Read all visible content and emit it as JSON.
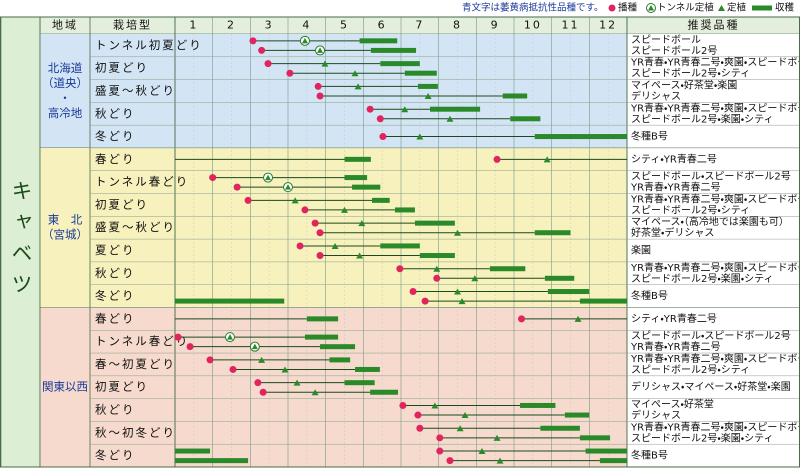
{
  "note": "青文字は萎黄病抵抗性品種です。",
  "legend": {
    "sow": "播種",
    "tunnel": "トンネル定植",
    "plant": "定植",
    "harvest": "収穫"
  },
  "header": {
    "region": "地域",
    "type": "栽培型",
    "months": [
      1,
      2,
      3,
      4,
      5,
      6,
      7,
      8,
      9,
      10,
      11,
      12
    ],
    "varieties": "推奨品種"
  },
  "crop": "キャベツ",
  "regions": [
    {
      "label": [
        "北海道",
        "（道央）",
        "・",
        "高冷地"
      ],
      "color": "#d3e5f4",
      "rows": [
        {
          "type": "トンネル初夏どり",
          "schedules": [
            {
              "sow": 2.07,
              "tunnel": 3.45,
              "harvest": [
                4.9,
                5.9
              ]
            },
            {
              "sow": 2.3,
              "tunnel": 3.85,
              "harvest": [
                5.2,
                6.4
              ]
            }
          ],
          "varieties": [
            {
              "text": "スピードボール",
              "resistant": false
            },
            {
              "text": "スピードボール2号",
              "resistant": false
            }
          ]
        },
        {
          "type": "初夏どり",
          "schedules": [
            {
              "sow": 2.47,
              "plant": 3.98,
              "harvest": [
                5.45,
                6.5
              ]
            },
            {
              "sow": 3.05,
              "plant": 4.78,
              "harvest": [
                6.1,
                6.95
              ]
            }
          ],
          "varieties": [
            {
              "text": "YR青春・YR青春二号・爽園・スピードボール",
              "resistant": true
            },
            {
              "text": "スピードボール2号・シティ",
              "resistant": true
            }
          ]
        },
        {
          "type": "盛夏～秋どり",
          "schedules": [
            {
              "sow": 3.8,
              "plant": 4.86,
              "harvest": [
                6.45,
                6.98
              ]
            },
            {
              "sow": 3.85,
              "plant": 6.72,
              "harvest": [
                8.7,
                9.35
              ]
            }
          ],
          "varieties": [
            {
              "text": "マイペース・好茶堂・楽園",
              "resistant": true
            },
            {
              "text": "デリシャス",
              "resistant": false
            }
          ]
        },
        {
          "type": "秋どり",
          "schedules": [
            {
              "sow": 5.18,
              "plant": 6.1,
              "harvest": [
                6.77,
                8.1
              ]
            },
            {
              "sow": 5.45,
              "plant": 7.3,
              "harvest": [
                8.9,
                9.7
              ]
            }
          ],
          "varieties": [
            {
              "text": "YR青春・YR青春二号・爽園・スピードボール",
              "resistant": true
            },
            {
              "text": "スピードボール2号・楽園・シティ",
              "resistant": true
            }
          ]
        },
        {
          "type": "冬どり",
          "schedules": [
            {
              "sow": 5.52,
              "plant": 6.5,
              "harvest": [
                9.55,
                12
              ]
            }
          ],
          "varieties": [
            {
              "text": "冬種B号",
              "resistant": false
            }
          ]
        }
      ]
    },
    {
      "label": [
        "東　北",
        "（宮城）"
      ],
      "color": "#f6f1bd",
      "rows": [
        {
          "type": "春どり",
          "schedules": [
            {
              "sow": 8.55,
              "plant": 9.88,
              "harvest": [
                16.5,
                17.2
              ]
            }
          ],
          "varieties": [
            {
              "text": "シティ・YR青春二号",
              "resistant": true
            }
          ]
        },
        {
          "type": "トンネル春どり",
          "schedules": [
            {
              "sow": 1.0,
              "tunnel": 2.47,
              "harvest": [
                4.5,
                5.1
              ]
            },
            {
              "sow": 1.65,
              "tunnel": 3.0,
              "harvest": [
                4.7,
                5.45
              ]
            }
          ],
          "varieties": [
            {
              "text": "スピードボール・スピードボール2号",
              "resistant": false
            },
            {
              "text": "YR青春・YR青春二号",
              "resistant": true
            }
          ]
        },
        {
          "type": "初夏どり",
          "schedules": [
            {
              "sow": 1.94,
              "plant": 3.19,
              "harvest": [
                5.23,
                5.7
              ]
            },
            {
              "sow": 3.45,
              "plant": 4.5,
              "harvest": [
                5.84,
                6.37
              ]
            }
          ],
          "varieties": [
            {
              "text": "YR青春・YR青春二号・爽園・スピードボール",
              "resistant": true
            },
            {
              "text": "スピードボール2号・シティ",
              "resistant": true
            }
          ]
        },
        {
          "type": "盛夏～秋どり",
          "schedules": [
            {
              "sow": 3.72,
              "plant": 4.96,
              "harvest": [
                6.37,
                7.43
              ]
            },
            {
              "sow": 3.85,
              "plant": 7.5,
              "harvest": [
                9.55,
                10.5
              ]
            }
          ],
          "varieties": [
            {
              "text": "マイペース・（高冷地では楽園も可）",
              "resistant": true
            },
            {
              "text": "好茶堂・デリシャス",
              "resistant": true
            }
          ]
        },
        {
          "type": "夏どり",
          "schedules": [
            {
              "sow": 3.32,
              "plant": 4.25,
              "harvest": [
                5.45,
                6.5
              ]
            },
            {
              "sow": 3.85,
              "plant": 4.9,
              "harvest": [
                6.5,
                7.43
              ]
            }
          ],
          "varieties": [
            {
              "text": "楽園",
              "resistant": false
            }
          ]
        },
        {
          "type": "秋どり",
          "schedules": [
            {
              "sow": 5.97,
              "plant": 6.95,
              "harvest": [
                8.36,
                9.3
              ]
            },
            {
              "sow": 6.95,
              "plant": 7.96,
              "harvest": [
                9.82,
                10.6
              ]
            }
          ],
          "varieties": [
            {
              "text": "YR青春・YR青春二号・爽園・スピードボール",
              "resistant": true
            },
            {
              "text": "スピードボール2号・楽園・シティ",
              "resistant": true
            }
          ]
        },
        {
          "type": "冬どり",
          "schedules": [
            {
              "sow": 6.32,
              "plant": 7.5,
              "harvest": [
                9.9,
                11.0
              ]
            },
            {
              "sow": 6.64,
              "plant": 7.62,
              "harvest": [
                10.75,
                14.9
              ]
            }
          ],
          "varieties": [
            {
              "text": "冬種B号",
              "resistant": false
            }
          ]
        }
      ]
    },
    {
      "label": [
        "関東以西"
      ],
      "color": "#f5dacd",
      "rows": [
        {
          "type": "春どり",
          "schedules": [
            {
              "sow": 9.2,
              "plant": 10.7,
              "harvest": [
                15.5,
                16.33
              ]
            }
          ],
          "varieties": [
            {
              "text": "シティ・YR青春二号",
              "resistant": true
            }
          ]
        },
        {
          "type": "トンネル春どり",
          "schedules": [
            {
              "sow": 0.08,
              "tunnel": 1.46,
              "harvest": [
                3.45,
                4.33
              ]
            },
            {
              "sow": 0.4,
              "tunnel": 2.12,
              "harvest": [
                3.85,
                4.78
              ]
            }
          ],
          "varieties": [
            {
              "text": "スピードボール・スピードボール2号",
              "resistant": false
            },
            {
              "text": "YR青春・YR青春二号",
              "resistant": true
            }
          ]
        },
        {
          "type": "春～初夏どり",
          "schedules": [
            {
              "sow": 0.93,
              "plant": 2.3,
              "harvest": [
                4.1,
                4.65
              ]
            },
            {
              "sow": 1.54,
              "plant": 2.92,
              "harvest": [
                4.78,
                5.44
              ]
            }
          ],
          "varieties": [
            {
              "text": "YR青春・YR青春二号・爽園・スピードボール",
              "resistant": true
            },
            {
              "text": "スピードボール2号・シティ",
              "resistant": true
            }
          ]
        },
        {
          "type": "初夏どり",
          "schedules": [
            {
              "sow": 2.2,
              "plant": 3.24,
              "harvest": [
                4.5,
                5.3
              ]
            },
            {
              "sow": 2.34,
              "plant": 3.72,
              "harvest": [
                5.18,
                5.92
              ]
            }
          ],
          "varieties": [
            {
              "text": "デリシャス・マイペース・好茶堂・楽園",
              "resistant": false
            }
          ]
        },
        {
          "type": "秋どり",
          "schedules": [
            {
              "sow": 6.05,
              "plant": 6.9,
              "harvest": [
                9.16,
                10.1
              ]
            },
            {
              "sow": 6.45,
              "plant": 7.7,
              "harvest": [
                10.35,
                11.0
              ]
            }
          ],
          "varieties": [
            {
              "text": "マイペース・好茶堂",
              "resistant": true
            },
            {
              "text": "デリシャス",
              "resistant": true
            }
          ]
        },
        {
          "type": "秋～初冬どり",
          "schedules": [
            {
              "sow": 6.5,
              "plant": 7.57,
              "harvest": [
                9.7,
                10.75
              ]
            },
            {
              "sow": 7.03,
              "plant": 8.55,
              "harvest": [
                10.75,
                11.55
              ]
            }
          ],
          "varieties": [
            {
              "text": "YR青春・YR青春二号・爽園・スピードボール",
              "resistant": true
            },
            {
              "text": "スピードボール2号・楽園・シティ",
              "resistant": true
            }
          ]
        },
        {
          "type": "冬どり",
          "schedules": [
            {
              "sow": 7.03,
              "plant": 8.15,
              "harvest": [
                10.9,
                12.93
              ]
            },
            {
              "sow": 7.3,
              "plant": 8.63,
              "harvest": [
                11.28,
                13.94
              ]
            }
          ],
          "varieties": [
            {
              "text": "冬種B号",
              "resistant": false
            }
          ]
        }
      ]
    }
  ]
}
